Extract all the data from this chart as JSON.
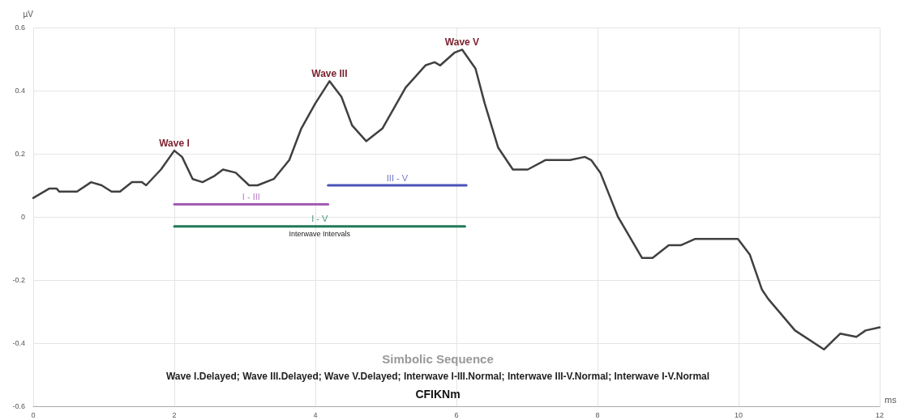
{
  "chart_data": {
    "type": "line",
    "xlabel": "ms",
    "ylabel": "µV",
    "xlim": [
      0,
      12
    ],
    "ylim": [
      -0.6,
      0.6
    ],
    "xticks": [
      0,
      2,
      4,
      6,
      8,
      10,
      12
    ],
    "yticks": [
      -0.6,
      -0.4,
      -0.2,
      0,
      0.2,
      0.4,
      0.6
    ],
    "grid": true,
    "legend": false,
    "marker": "none",
    "line_style": "solid",
    "series": [
      {
        "color": "#404040",
        "x": [
          0,
          0.23,
          0.33,
          0.37,
          0.62,
          0.82,
          0.97,
          1.11,
          1.23,
          1.4,
          1.54,
          1.6,
          1.81,
          2.0,
          2.11,
          2.26,
          2.4,
          2.57,
          2.69,
          2.87,
          3.06,
          3.18,
          3.41,
          3.63,
          3.8,
          4.0,
          4.2,
          4.37,
          4.52,
          4.72,
          4.95,
          5.28,
          5.56,
          5.69,
          5.77,
          5.97,
          6.08,
          6.27,
          6.4,
          6.59,
          6.8,
          7.01,
          7.26,
          7.61,
          7.82,
          7.91,
          8.04,
          8.29,
          8.63,
          8.78,
          9.01,
          9.18,
          9.38,
          9.65,
          9.99,
          10.16,
          10.33,
          10.42,
          10.8,
          11.21,
          11.44,
          11.67,
          11.8,
          12.0
        ],
        "values": [
          0.06,
          0.09,
          0.09,
          0.08,
          0.08,
          0.11,
          0.1,
          0.08,
          0.08,
          0.11,
          0.11,
          0.1,
          0.15,
          0.21,
          0.19,
          0.12,
          0.11,
          0.13,
          0.15,
          0.14,
          0.1,
          0.1,
          0.12,
          0.18,
          0.28,
          0.36,
          0.43,
          0.38,
          0.29,
          0.24,
          0.28,
          0.41,
          0.48,
          0.49,
          0.48,
          0.52,
          0.53,
          0.47,
          0.36,
          0.22,
          0.15,
          0.15,
          0.18,
          0.18,
          0.19,
          0.18,
          0.14,
          0,
          -0.13,
          -0.13,
          -0.09,
          -0.09,
          -0.07,
          -0.07,
          -0.07,
          -0.12,
          -0.23,
          -0.26,
          -0.36,
          -0.42,
          -0.37,
          -0.38,
          -0.36,
          -0.35
        ]
      },
      {
        "name": "I - III",
        "color": "#a55bb5",
        "x": [
          2,
          4.18
        ],
        "values": [
          0.04,
          0.04
        ]
      },
      {
        "name": "III - V",
        "color": "#4b52b8",
        "x": [
          4.18,
          6.14
        ],
        "values": [
          0.1,
          0.1
        ]
      },
      {
        "name": "I - V",
        "color": "#1f7a58",
        "x": [
          2,
          6.12
        ],
        "values": [
          -0.03,
          -0.03
        ]
      }
    ],
    "annotations": [
      {
        "text": "Wave I",
        "x": 2.0,
        "y": 0.21
      },
      {
        "text": "Wave III",
        "x": 4.2,
        "y": 0.43
      },
      {
        "text": "Wave V",
        "x": 6.08,
        "y": 0.53
      },
      "Interwave Intervals",
      "Simbolic Sequence",
      "Wave I.Delayed; Wave III.Delayed; Wave V.Delayed; Interwave I-III.Normal; Interwave III-V.Normal; Interwave I-V.Normal",
      "CFIKNm"
    ]
  }
}
